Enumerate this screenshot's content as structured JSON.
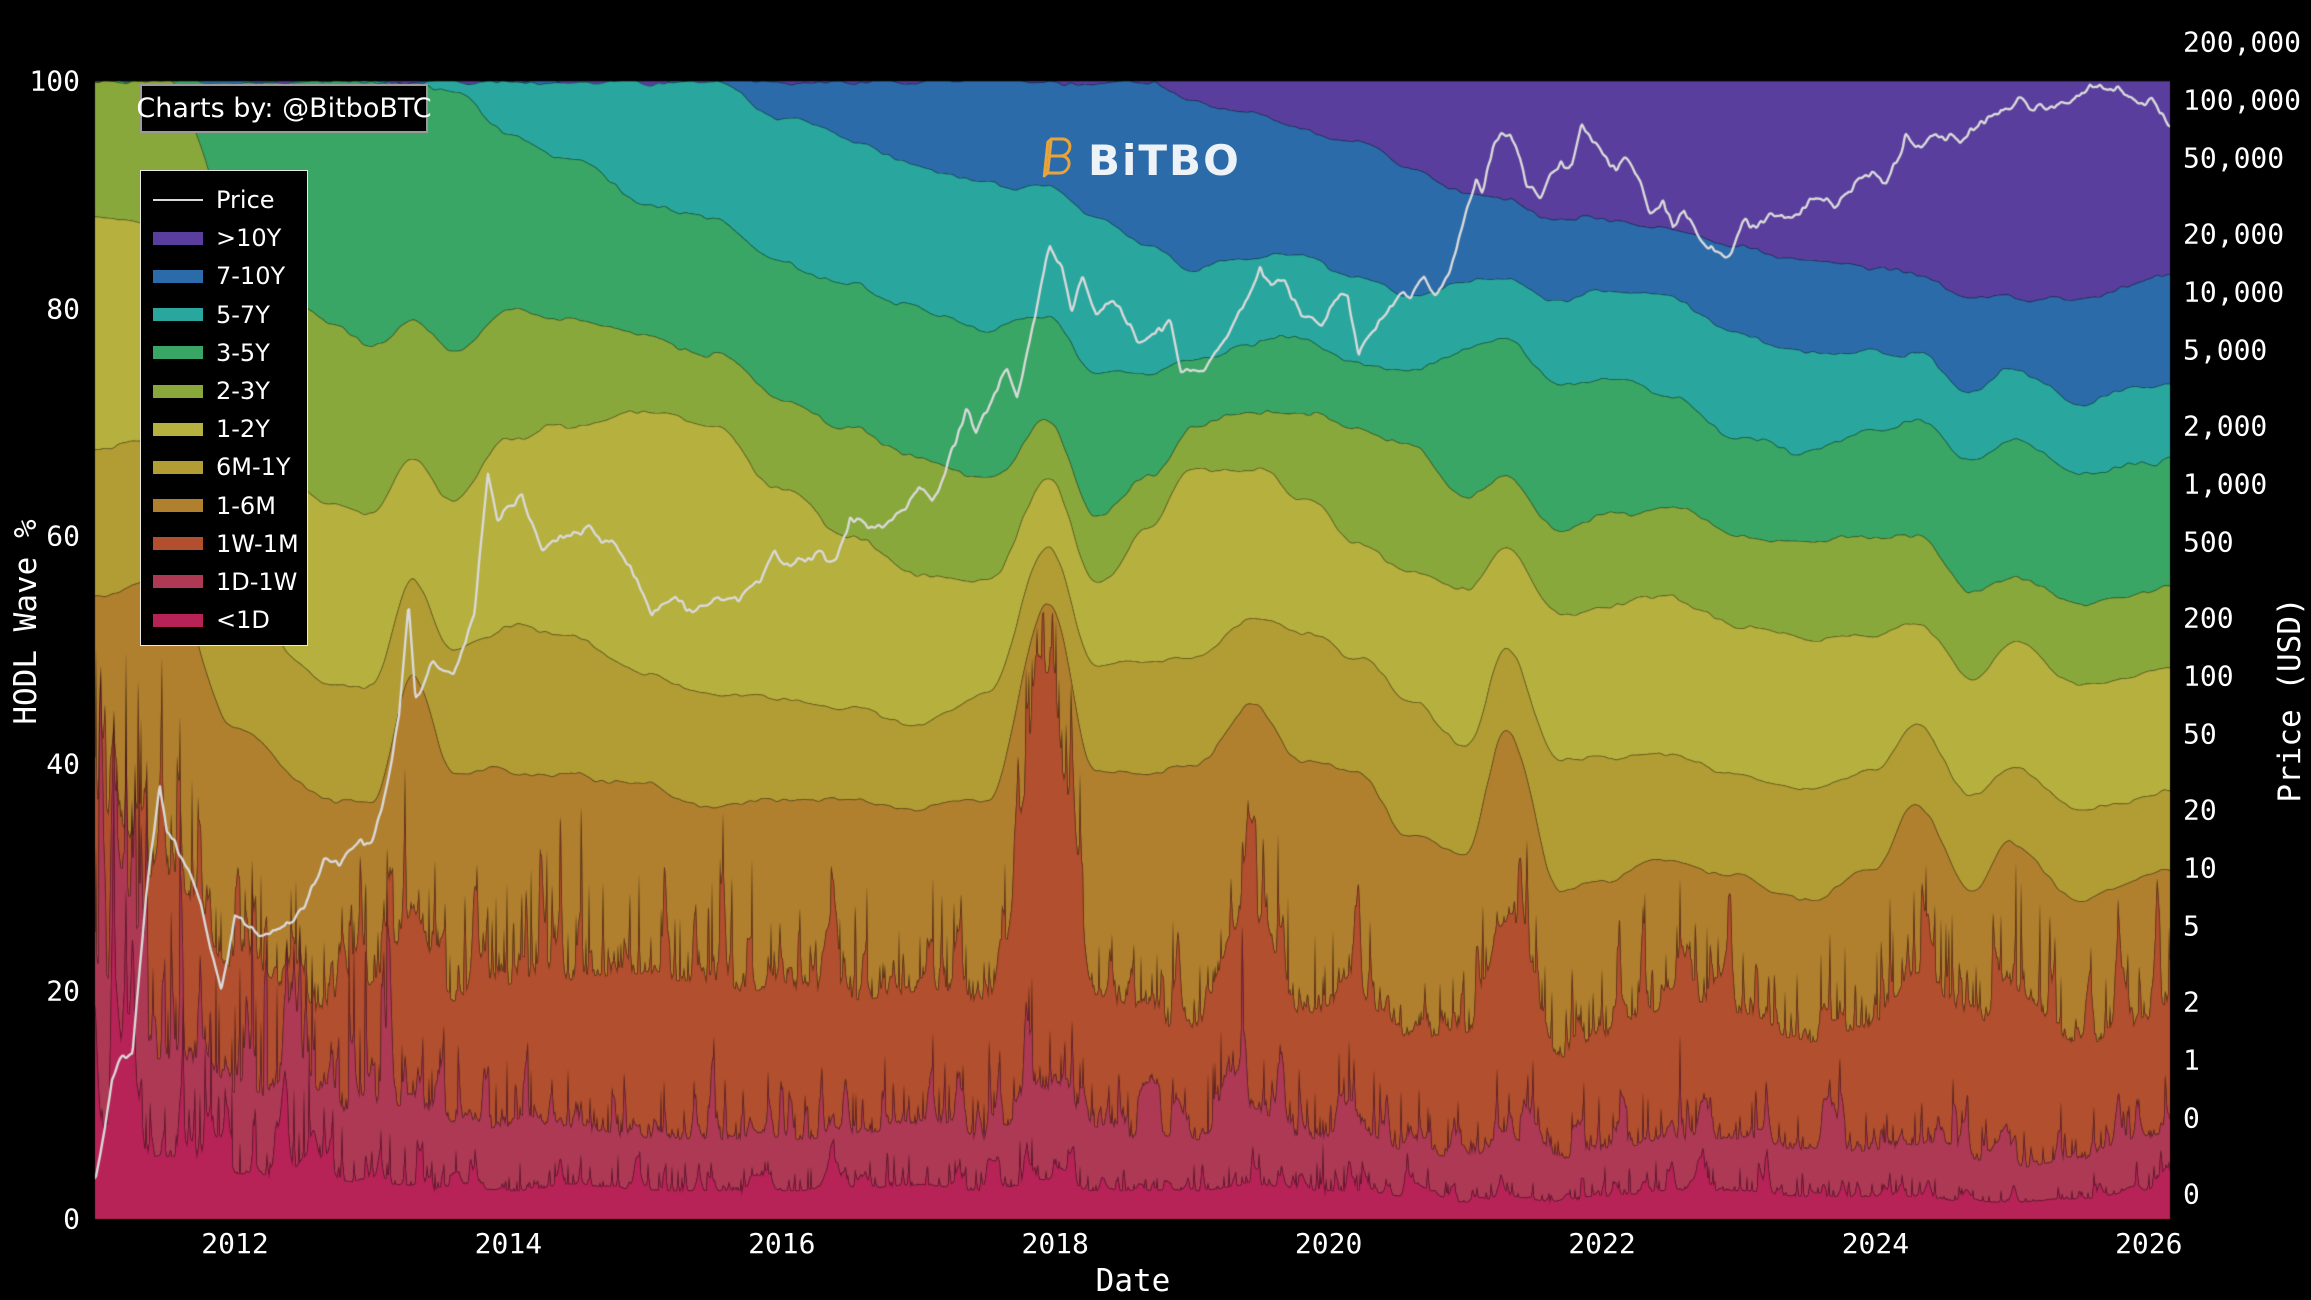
{
  "badge": {
    "text": "Charts by: @BitboBTC"
  },
  "watermark": {
    "mark_icon": "bitcoin-b",
    "text": "BiTBO",
    "mark_color": "#E8A33B",
    "text_color": "#EDF2F7"
  },
  "legend": {
    "price_label": "Price"
  },
  "axes": {
    "x": {
      "title": "Date"
    },
    "y_left": {
      "title": "HODL Wave %"
    },
    "y_right": {
      "title": "Price (USD)"
    }
  },
  "chart_data": {
    "type": "area",
    "subtype": "stacked-100pct-hodl-waves with log price line overlay",
    "background": "#000000",
    "x": {
      "label": "Date",
      "range_years": [
        2010.976,
        2026.155
      ],
      "ticks": [
        {
          "value": 2012,
          "label": "2012"
        },
        {
          "value": 2014,
          "label": "2014"
        },
        {
          "value": 2016,
          "label": "2016"
        },
        {
          "value": 2018,
          "label": "2018"
        },
        {
          "value": 2020,
          "label": "2020"
        },
        {
          "value": 2022,
          "label": "2022"
        },
        {
          "value": 2024,
          "label": "2024"
        },
        {
          "value": 2026,
          "label": "2026"
        }
      ]
    },
    "y_left": {
      "label": "HODL Wave %",
      "range": [
        0,
        100
      ],
      "ticks": [
        {
          "value": 0,
          "label": "0"
        },
        {
          "value": 20,
          "label": "20"
        },
        {
          "value": 40,
          "label": "40"
        },
        {
          "value": 60,
          "label": "60"
        },
        {
          "value": 80,
          "label": "80"
        },
        {
          "value": 100,
          "label": "100"
        }
      ]
    },
    "y_right": {
      "label": "Price (USD)",
      "scale": "log",
      "range_usd": [
        0.149,
        125500
      ],
      "ticks": [
        {
          "value": 200000,
          "label": "200,000"
        },
        {
          "value": 100000,
          "label": "100,000"
        },
        {
          "value": 50000,
          "label": "50,000"
        },
        {
          "value": 20000,
          "label": "20,000"
        },
        {
          "value": 10000,
          "label": "10,000"
        },
        {
          "value": 5000,
          "label": "5,000"
        },
        {
          "value": 2000,
          "label": "2,000"
        },
        {
          "value": 1000,
          "label": "1,000"
        },
        {
          "value": 500,
          "label": "500"
        },
        {
          "value": 200,
          "label": "200"
        },
        {
          "value": 100,
          "label": "100"
        },
        {
          "value": 50,
          "label": "50"
        },
        {
          "value": 20,
          "label": "20"
        },
        {
          "value": 10,
          "label": "10"
        },
        {
          "value": 5,
          "label": "5"
        },
        {
          "value": 2,
          "label": "2"
        },
        {
          "value": 1,
          "label": "1"
        },
        {
          "value": 0.5,
          "label": "0"
        },
        {
          "value": 0.2,
          "label": "0"
        }
      ]
    },
    "keyframe_years": [
      2011.0,
      2011.5,
      2012.0,
      2012.7,
      2013.0,
      2013.3,
      2013.6,
      2014.0,
      2014.5,
      2015.0,
      2015.5,
      2016.0,
      2016.5,
      2017.0,
      2017.5,
      2017.95,
      2018.3,
      2018.7,
      2019.0,
      2019.45,
      2019.8,
      2020.2,
      2020.6,
      2021.0,
      2021.3,
      2021.7,
      2022.0,
      2022.5,
      2023.0,
      2023.5,
      2024.0,
      2024.3,
      2024.7,
      2025.0,
      2025.5,
      2026.0,
      2026.15
    ],
    "bands_bottom_to_top": [
      {
        "label": "<1D",
        "color": "#B82357",
        "pct_keyframes": [
          6,
          5.5,
          4,
          3.5,
          3,
          3,
          2.5,
          2.5,
          3,
          2.5,
          2.5,
          2.5,
          2.5,
          3,
          2.5,
          3.5,
          2.5,
          2.5,
          2.5,
          3,
          2.5,
          2.5,
          2,
          1.5,
          2,
          1.5,
          2,
          2.5,
          2.5,
          2,
          2,
          2,
          1.5,
          1.5,
          1.8,
          2.5,
          2.5
        ]
      },
      {
        "label": "1D-1W",
        "color": "#AD3955",
        "pct_keyframes": [
          9,
          8.5,
          7,
          6,
          6,
          7,
          5.5,
          5.5,
          5,
          4.5,
          4.5,
          4.5,
          4.5,
          5.5,
          4.5,
          8,
          5,
          4.5,
          4.5,
          6,
          4.5,
          5,
          4,
          3.5,
          5,
          3.5,
          4,
          4.5,
          4.5,
          4,
          4,
          4.5,
          3.5,
          3,
          3.5,
          4.5,
          4.5
        ]
      },
      {
        "label": "1W-1M",
        "color": "#B14F2E",
        "pct_keyframes": [
          15,
          16,
          11,
          8.5,
          10,
          16,
          11,
          12.5,
          13,
          14.5,
          13,
          13,
          12,
          11.5,
          12,
          30.5,
          12,
          10,
          10,
          17,
          11,
          12,
          10,
          11,
          19,
          9,
          10,
          11.5,
          11,
          9.5,
          11,
          15,
          11,
          15.5,
          10,
          10,
          10.5
        ]
      },
      {
        "label": "1-6M",
        "color": "#B1802F",
        "pct_keyframes": [
          25,
          26,
          21,
          19,
          18,
          22,
          20,
          19,
          18,
          16.5,
          16,
          17,
          18,
          16,
          18,
          12,
          20,
          22,
          23,
          19,
          22.5,
          20,
          18,
          16,
          17,
          15,
          14,
          13,
          12,
          12.5,
          14,
          15,
          13,
          13,
          13,
          13,
          13
        ]
      },
      {
        "label": "6M-1Y",
        "color": "#B19D34",
        "pct_keyframes": [
          13,
          12,
          11,
          10,
          10,
          8,
          11,
          12.5,
          12,
          10,
          10,
          9,
          8,
          7.5,
          9,
          5,
          9,
          10,
          10,
          8,
          11,
          10,
          12,
          9.5,
          7,
          11,
          10.5,
          9.5,
          9,
          9.5,
          8.5,
          7,
          8,
          7,
          7.5,
          7,
          7
        ]
      },
      {
        "label": "1-2Y",
        "color": "#B6B03E",
        "pct_keyframes": [
          20,
          19,
          17,
          16,
          15,
          11,
          13,
          16.5,
          19,
          23,
          24,
          18,
          15,
          13,
          10,
          6,
          7.5,
          12,
          16.5,
          13,
          12,
          10,
          11,
          14,
          9,
          13,
          13.5,
          13.5,
          13,
          13.5,
          12,
          9,
          10.5,
          10.5,
          11,
          11,
          11
        ]
      },
      {
        "label": "2-3Y",
        "color": "#89A83B",
        "pct_keyframes": [
          12,
          13,
          17,
          16,
          15,
          12,
          13.5,
          11.5,
          9,
          6.5,
          6,
          8,
          9.5,
          10.5,
          9,
          5,
          6,
          4.5,
          3.5,
          5,
          7.5,
          10,
          11.5,
          8,
          6.5,
          7.5,
          8,
          8,
          8,
          8.5,
          8.5,
          7.5,
          7.5,
          6,
          7,
          7,
          7
        ]
      },
      {
        "label": "3-5Y",
        "color": "#39A665",
        "pct_keyframes": [
          0,
          0,
          12,
          21,
          23,
          20.5,
          22.5,
          15.5,
          14,
          12,
          12,
          12,
          12.5,
          13,
          13,
          9.5,
          12.5,
          9,
          6.5,
          6,
          6.5,
          6,
          6.5,
          13,
          11.5,
          13,
          12,
          10,
          8.5,
          8,
          9,
          10,
          11.5,
          12,
          11.5,
          11.5,
          11.5
        ]
      },
      {
        "label": "5-7Y",
        "color": "#29A79F",
        "pct_keyframes": [
          0,
          0,
          0,
          0,
          0,
          0.5,
          1,
          4.5,
          7,
          10.5,
          12,
          13,
          13,
          12.5,
          13,
          11,
          13.5,
          11,
          8,
          7.5,
          7.5,
          7,
          6.5,
          6,
          5.5,
          7,
          7.5,
          8.5,
          9,
          8.5,
          7,
          6,
          6,
          6,
          6.5,
          6.5,
          6.5
        ]
      },
      {
        "label": "7-10Y",
        "color": "#2C6BAA",
        "pct_keyframes": [
          0,
          0,
          0,
          0,
          0,
          0,
          0,
          0,
          0,
          0,
          0,
          3,
          5,
          7.5,
          9,
          9.5,
          12,
          14.5,
          15,
          12.5,
          11,
          12,
          11.5,
          7.5,
          7,
          7.5,
          6.5,
          6,
          8,
          8,
          7.5,
          7,
          8.5,
          6.5,
          9,
          9.5,
          9.5
        ]
      },
      {
        "label": ">10Y",
        "color": "#593E9D",
        "pct_keyframes": [
          0,
          0,
          0,
          0,
          0,
          0,
          0,
          0,
          0,
          0,
          0,
          0,
          0,
          0,
          0,
          0,
          0,
          0,
          1.5,
          3,
          4,
          5.5,
          7.5,
          10,
          10.5,
          12,
          12,
          13,
          14.5,
          16,
          16.5,
          17,
          19,
          19,
          19.2,
          17.5,
          17
        ]
      }
    ],
    "price_line": {
      "label": "Price",
      "color": "#D9D9D9",
      "points_year_usd": [
        [
          2010.98,
          0.25
        ],
        [
          2011.1,
          0.75
        ],
        [
          2011.25,
          1.1
        ],
        [
          2011.35,
          8
        ],
        [
          2011.45,
          29
        ],
        [
          2011.5,
          15
        ],
        [
          2011.6,
          11
        ],
        [
          2011.75,
          7
        ],
        [
          2011.9,
          2.4
        ],
        [
          2012.0,
          5.3
        ],
        [
          2012.15,
          4.5
        ],
        [
          2012.3,
          4.9
        ],
        [
          2012.5,
          6.5
        ],
        [
          2012.65,
          10.5
        ],
        [
          2012.7,
          9.5
        ],
        [
          2012.85,
          11
        ],
        [
          2013.0,
          13.4
        ],
        [
          2013.1,
          25
        ],
        [
          2013.2,
          60
        ],
        [
          2013.27,
          230
        ],
        [
          2013.32,
          77
        ],
        [
          2013.45,
          110
        ],
        [
          2013.6,
          95
        ],
        [
          2013.75,
          200
        ],
        [
          2013.85,
          1120
        ],
        [
          2013.92,
          650
        ],
        [
          2014.0,
          780
        ],
        [
          2014.1,
          850
        ],
        [
          2014.25,
          440
        ],
        [
          2014.45,
          590
        ],
        [
          2014.6,
          620
        ],
        [
          2014.75,
          480
        ],
        [
          2014.9,
          340
        ],
        [
          2015.05,
          215
        ],
        [
          2015.2,
          255
        ],
        [
          2015.35,
          235
        ],
        [
          2015.55,
          250
        ],
        [
          2015.7,
          235
        ],
        [
          2015.85,
          310
        ],
        [
          2015.95,
          450
        ],
        [
          2016.05,
          380
        ],
        [
          2016.2,
          415
        ],
        [
          2016.4,
          455
        ],
        [
          2016.5,
          745
        ],
        [
          2016.6,
          650
        ],
        [
          2016.75,
          610
        ],
        [
          2016.9,
          720
        ],
        [
          2017.0,
          985
        ],
        [
          2017.1,
          820
        ],
        [
          2017.2,
          1190
        ],
        [
          2017.35,
          2550
        ],
        [
          2017.42,
          1880
        ],
        [
          2017.55,
          2700
        ],
        [
          2017.65,
          4250
        ],
        [
          2017.72,
          3150
        ],
        [
          2017.85,
          7500
        ],
        [
          2017.96,
          19200
        ],
        [
          2018.05,
          13500
        ],
        [
          2018.12,
          7300
        ],
        [
          2018.2,
          11000
        ],
        [
          2018.3,
          6850
        ],
        [
          2018.4,
          8900
        ],
        [
          2018.5,
          7450
        ],
        [
          2018.6,
          6250
        ],
        [
          2018.72,
          6600
        ],
        [
          2018.85,
          6350
        ],
        [
          2018.92,
          3900
        ],
        [
          2019.0,
          3720
        ],
        [
          2019.1,
          3900
        ],
        [
          2019.25,
          5200
        ],
        [
          2019.4,
          8500
        ],
        [
          2019.5,
          12900
        ],
        [
          2019.58,
          10200
        ],
        [
          2019.68,
          11800
        ],
        [
          2019.8,
          8300
        ],
        [
          2019.95,
          7100
        ],
        [
          2020.05,
          9300
        ],
        [
          2020.14,
          10200
        ],
        [
          2020.22,
          4950
        ],
        [
          2020.35,
          7100
        ],
        [
          2020.45,
          9300
        ],
        [
          2020.6,
          9150
        ],
        [
          2020.7,
          11800
        ],
        [
          2020.8,
          10700
        ],
        [
          2020.9,
          15600
        ],
        [
          2020.97,
          23000
        ],
        [
          2021.03,
          33000
        ],
        [
          2021.08,
          40500
        ],
        [
          2021.12,
          33000
        ],
        [
          2021.2,
          52000
        ],
        [
          2021.3,
          59000
        ],
        [
          2021.33,
          63500
        ],
        [
          2021.4,
          50000
        ],
        [
          2021.45,
          37000
        ],
        [
          2021.55,
          33500
        ],
        [
          2021.62,
          40000
        ],
        [
          2021.7,
          47500
        ],
        [
          2021.78,
          44500
        ],
        [
          2021.85,
          67500
        ],
        [
          2021.92,
          57000
        ],
        [
          2022.0,
          46500
        ],
        [
          2022.1,
          38500
        ],
        [
          2022.18,
          44000
        ],
        [
          2022.28,
          39500
        ],
        [
          2022.35,
          30000
        ],
        [
          2022.45,
          29500
        ],
        [
          2022.52,
          19000
        ],
        [
          2022.6,
          23500
        ],
        [
          2022.7,
          20000
        ],
        [
          2022.8,
          19400
        ],
        [
          2022.88,
          15900
        ],
        [
          2022.95,
          16800
        ],
        [
          2023.05,
          23000
        ],
        [
          2023.13,
          21800
        ],
        [
          2023.22,
          28300
        ],
        [
          2023.35,
          27500
        ],
        [
          2023.45,
          26300
        ],
        [
          2023.52,
          30600
        ],
        [
          2023.6,
          29300
        ],
        [
          2023.7,
          25900
        ],
        [
          2023.82,
          34600
        ],
        [
          2023.9,
          37800
        ],
        [
          2024.0,
          43800
        ],
        [
          2024.08,
          42100
        ],
        [
          2024.15,
          51500
        ],
        [
          2024.2,
          61500
        ],
        [
          2024.22,
          73000
        ],
        [
          2024.3,
          63500
        ],
        [
          2024.4,
          66800
        ],
        [
          2024.5,
          60500
        ],
        [
          2024.55,
          65000
        ],
        [
          2024.62,
          56500
        ],
        [
          2024.72,
          63500
        ],
        [
          2024.8,
          67500
        ],
        [
          2024.85,
          75500
        ],
        [
          2024.92,
          97000
        ],
        [
          2024.98,
          94500
        ],
        [
          2025.04,
          103000
        ],
        [
          2025.1,
          96500
        ],
        [
          2025.17,
          84000
        ],
        [
          2025.25,
          82500
        ],
        [
          2025.32,
          94500
        ],
        [
          2025.4,
          104000
        ],
        [
          2025.47,
          110500
        ],
        [
          2025.52,
          106000
        ],
        [
          2025.57,
          118500
        ],
        [
          2025.63,
          114000
        ],
        [
          2025.7,
          111500
        ],
        [
          2025.78,
          109000
        ],
        [
          2025.84,
          103000
        ],
        [
          2025.9,
          94000
        ],
        [
          2025.96,
          90500
        ],
        [
          2026.02,
          96000
        ],
        [
          2026.08,
          78000
        ],
        [
          2026.14,
          70000
        ]
      ]
    }
  }
}
